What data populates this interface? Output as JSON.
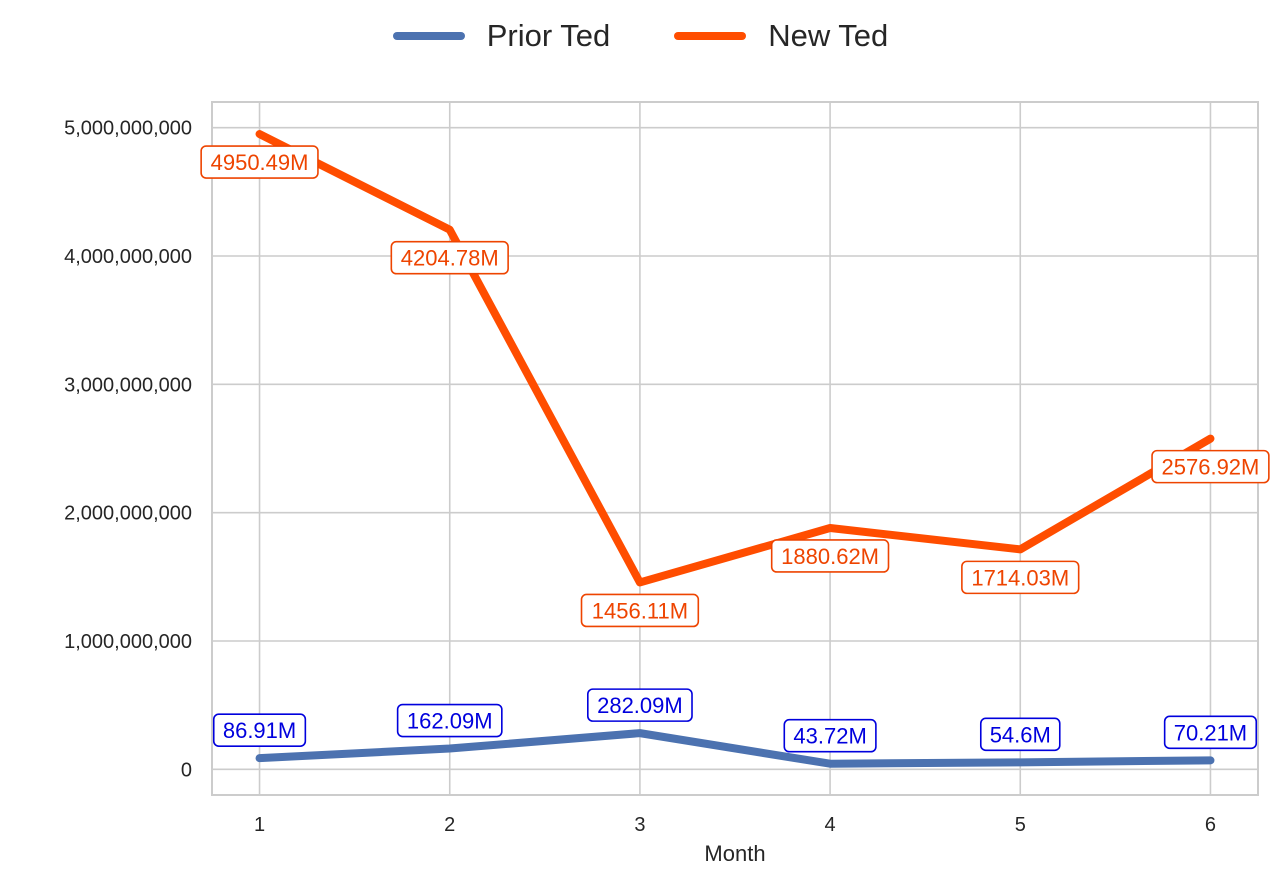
{
  "chart_data": {
    "type": "line",
    "x": [
      1,
      2,
      3,
      4,
      5,
      6
    ],
    "xlabel": "Month",
    "ylabel": "",
    "ylim": [
      -200000000,
      5200000000
    ],
    "xlim": [
      0.75,
      6.25
    ],
    "yticks": [
      0,
      1000000000,
      2000000000,
      3000000000,
      4000000000,
      5000000000
    ],
    "ytick_labels": [
      "0",
      "1,000,000,000",
      "2,000,000,000",
      "3,000,000,000",
      "4,000,000,000",
      "5,000,000,000"
    ],
    "xtick_labels": [
      "1",
      "2",
      "3",
      "4",
      "5",
      "6"
    ],
    "grid": true,
    "legend_position": "top-center",
    "series": [
      {
        "name": "Prior Ted",
        "color": "#4c72b0",
        "label_color": "#0000dd",
        "values": [
          86910000,
          162090000,
          282090000,
          43720000,
          54600000,
          70210000
        ],
        "data_labels": [
          "86.91M",
          "162.09M",
          "282.09M",
          "43.72M",
          "54.6M",
          "70.21M"
        ]
      },
      {
        "name": "New Ted",
        "color": "#ff4d00",
        "label_color": "#ee4400",
        "values": [
          4950490000,
          4204780000,
          1456110000,
          1880620000,
          1714030000,
          2576920000
        ],
        "data_labels": [
          "4950.49M",
          "4204.78M",
          "1456.11M",
          "1880.62M",
          "1714.03M",
          "2576.92M"
        ]
      }
    ]
  }
}
